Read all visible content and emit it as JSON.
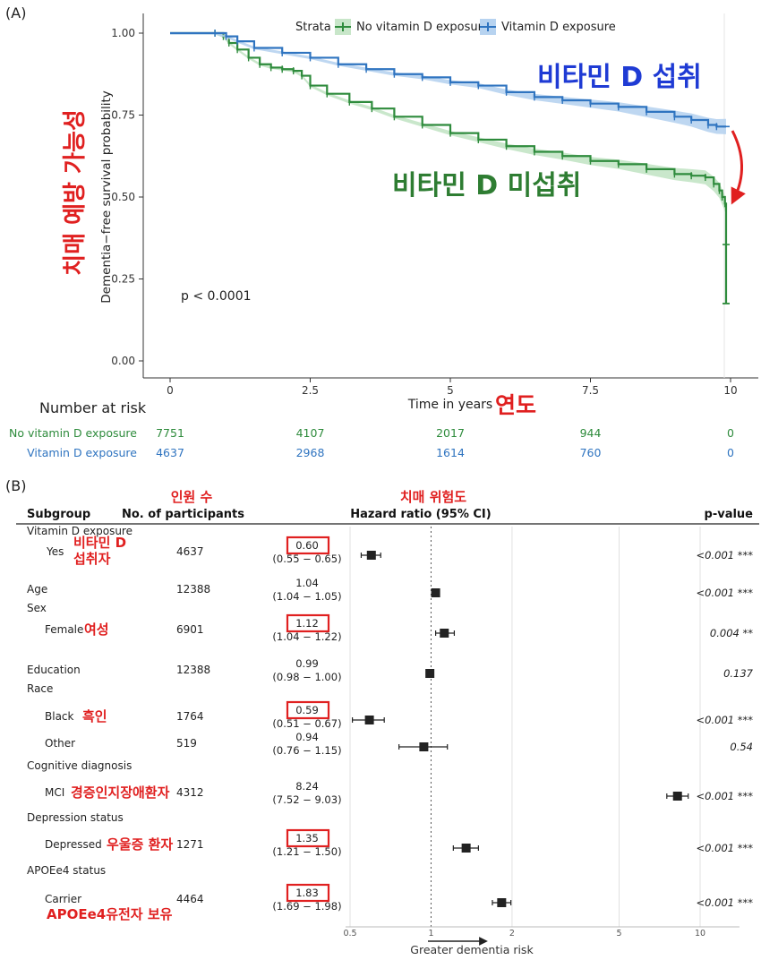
{
  "panel_a": {
    "tag": "(A)",
    "legend": {
      "title": "Strata",
      "items": [
        {
          "label": "No vitamin D exposure",
          "color": "#2e8b3c"
        },
        {
          "label": "Vitamin D exposure",
          "color": "#2f74c0"
        }
      ]
    },
    "ylabel": "Dementia−free survival probability",
    "xlabel": "Time in years",
    "pvalue": "p < 0.0001",
    "annotations": {
      "vitd": "비타민 D 섭취",
      "novitd": "비타민 D 미섭취",
      "yaxis_ko": "치매 예방 가능성",
      "xaxis_ko": "연도"
    },
    "risk_table": {
      "title": "Number at risk",
      "rows": [
        {
          "label": "No vitamin D exposure",
          "values": [
            "7751",
            "4107",
            "2017",
            "944",
            "0"
          ],
          "color": "#2e8b3c"
        },
        {
          "label": "Vitamin D exposure",
          "values": [
            "4637",
            "2968",
            "1614",
            "760",
            "0"
          ],
          "color": "#2f74c0"
        }
      ]
    }
  },
  "chart_data": [
    {
      "type": "line",
      "subtype": "kaplan-meier",
      "xlabel": "Time in years",
      "ylabel": "Dementia−free survival probability",
      "xlim": [
        0,
        10
      ],
      "ylim": [
        0,
        1
      ],
      "xticks": [
        "0",
        "2.5",
        "5",
        "7.5",
        "10"
      ],
      "yticks": [
        "0.00",
        "0.25",
        "0.50",
        "0.75",
        "1.00"
      ],
      "legend_position": "top",
      "series": [
        {
          "name": "No vitamin D exposure",
          "color": "#2e8b3c",
          "x": [
            0,
            0.8,
            0.95,
            1.05,
            1.2,
            1.4,
            1.6,
            1.8,
            2.0,
            2.2,
            2.35,
            2.5,
            2.8,
            3.2,
            3.6,
            4.0,
            4.5,
            5.0,
            5.5,
            6.0,
            6.5,
            7.0,
            7.5,
            8.0,
            8.5,
            9.0,
            9.3,
            9.55,
            9.7,
            9.8,
            9.85,
            9.9,
            9.92,
            9.92
          ],
          "y": [
            1.0,
            1.0,
            0.99,
            0.97,
            0.95,
            0.925,
            0.905,
            0.895,
            0.89,
            0.885,
            0.87,
            0.84,
            0.815,
            0.79,
            0.77,
            0.745,
            0.72,
            0.695,
            0.675,
            0.655,
            0.638,
            0.625,
            0.61,
            0.6,
            0.585,
            0.57,
            0.565,
            0.56,
            0.54,
            0.52,
            0.5,
            0.48,
            0.465,
            0.175
          ]
        },
        {
          "name": "Vitamin D exposure",
          "color": "#2f74c0",
          "x": [
            0,
            0.8,
            1.0,
            1.2,
            1.5,
            2.0,
            2.5,
            3.0,
            3.5,
            4.0,
            4.5,
            5.0,
            5.5,
            6.0,
            6.5,
            7.0,
            7.5,
            8.0,
            8.5,
            9.0,
            9.3,
            9.6,
            9.75,
            9.92
          ],
          "y": [
            1.0,
            1.0,
            0.99,
            0.975,
            0.955,
            0.94,
            0.925,
            0.905,
            0.89,
            0.875,
            0.865,
            0.85,
            0.84,
            0.82,
            0.805,
            0.795,
            0.785,
            0.775,
            0.76,
            0.745,
            0.735,
            0.72,
            0.715,
            0.715
          ]
        }
      ],
      "annotations": [
        "p < 0.0001"
      ]
    },
    {
      "type": "forest",
      "title": "",
      "xlabel": "Greater dementia risk",
      "xscale": "log",
      "xlim": [
        0.5,
        14
      ],
      "xticks": [
        0.5,
        1,
        2,
        5,
        10
      ],
      "xtick_labels": [
        "0.5",
        "1",
        "2",
        "5",
        "10"
      ],
      "reference": 1,
      "columns": [
        "Subgroup",
        "No. of participants",
        "Hazard ratio (95% CI)",
        "p-value"
      ],
      "column_annotations": {
        "participants": "인원 수",
        "hr": "치매 위험도"
      },
      "rows": [
        {
          "group": "Vitamin D exposure"
        },
        {
          "label": "Yes",
          "ko": "비타민 D",
          "ko2": "섭취자",
          "n": "4637",
          "hr": "0.60",
          "ci": "(0.55 − 0.65)",
          "p": "<0.001 ***",
          "est": 0.6,
          "lo": 0.55,
          "hi": 0.65,
          "boxed": true
        },
        {
          "group": "Age",
          "n": "12388",
          "hr": "1.04",
          "ci": "(1.04 − 1.05)",
          "p": "<0.001 ***",
          "est": 1.04,
          "lo": 1.035,
          "hi": 1.05,
          "boxed": false
        },
        {
          "group": "Sex"
        },
        {
          "label": "Female",
          "ko": "여성",
          "n": "6901",
          "hr": "1.12",
          "ci": "(1.04 − 1.22)",
          "p": "0.004 **",
          "est": 1.12,
          "lo": 1.04,
          "hi": 1.22,
          "boxed": true
        },
        {
          "group": "Education",
          "n": "12388",
          "hr": "0.99",
          "ci": "(0.98 − 1.00)",
          "p": "0.137",
          "est": 0.99,
          "lo": 0.98,
          "hi": 1.0,
          "boxed": false
        },
        {
          "group": "Race"
        },
        {
          "label": "Black",
          "ko": "흑인",
          "n": "1764",
          "hr": "0.59",
          "ci": "(0.51 − 0.67)",
          "p": "<0.001 ***",
          "est": 0.59,
          "lo": 0.51,
          "hi": 0.67,
          "boxed": true
        },
        {
          "label": "Other",
          "n": "519",
          "hr": "0.94",
          "ci": "(0.76 − 1.15)",
          "p": "0.54",
          "est": 0.94,
          "lo": 0.76,
          "hi": 1.15,
          "boxed": false
        },
        {
          "group": "Cognitive diagnosis"
        },
        {
          "label": "MCI",
          "ko": "경증인지장애환자",
          "n": "4312",
          "hr": "8.24",
          "ci": "(7.52 − 9.03)",
          "p": "<0.001 ***",
          "est": 8.24,
          "lo": 7.52,
          "hi": 9.03,
          "boxed": false
        },
        {
          "group": "Depression status"
        },
        {
          "label": "Depressed",
          "ko": "우울증 환자",
          "n": "1271",
          "hr": "1.35",
          "ci": "(1.21 − 1.50)",
          "p": "<0.001 ***",
          "est": 1.35,
          "lo": 1.21,
          "hi": 1.5,
          "boxed": true
        },
        {
          "group": "APOEe4 status"
        },
        {
          "label": "Carrier",
          "ko": "APOEe4유전자 보유",
          "n": "4464",
          "hr": "1.83",
          "ci": "(1.69 − 1.98)",
          "p": "<0.001 ***",
          "est": 1.83,
          "lo": 1.69,
          "hi": 1.98,
          "boxed": true
        }
      ]
    }
  ],
  "panel_b": {
    "tag": "(B)"
  }
}
